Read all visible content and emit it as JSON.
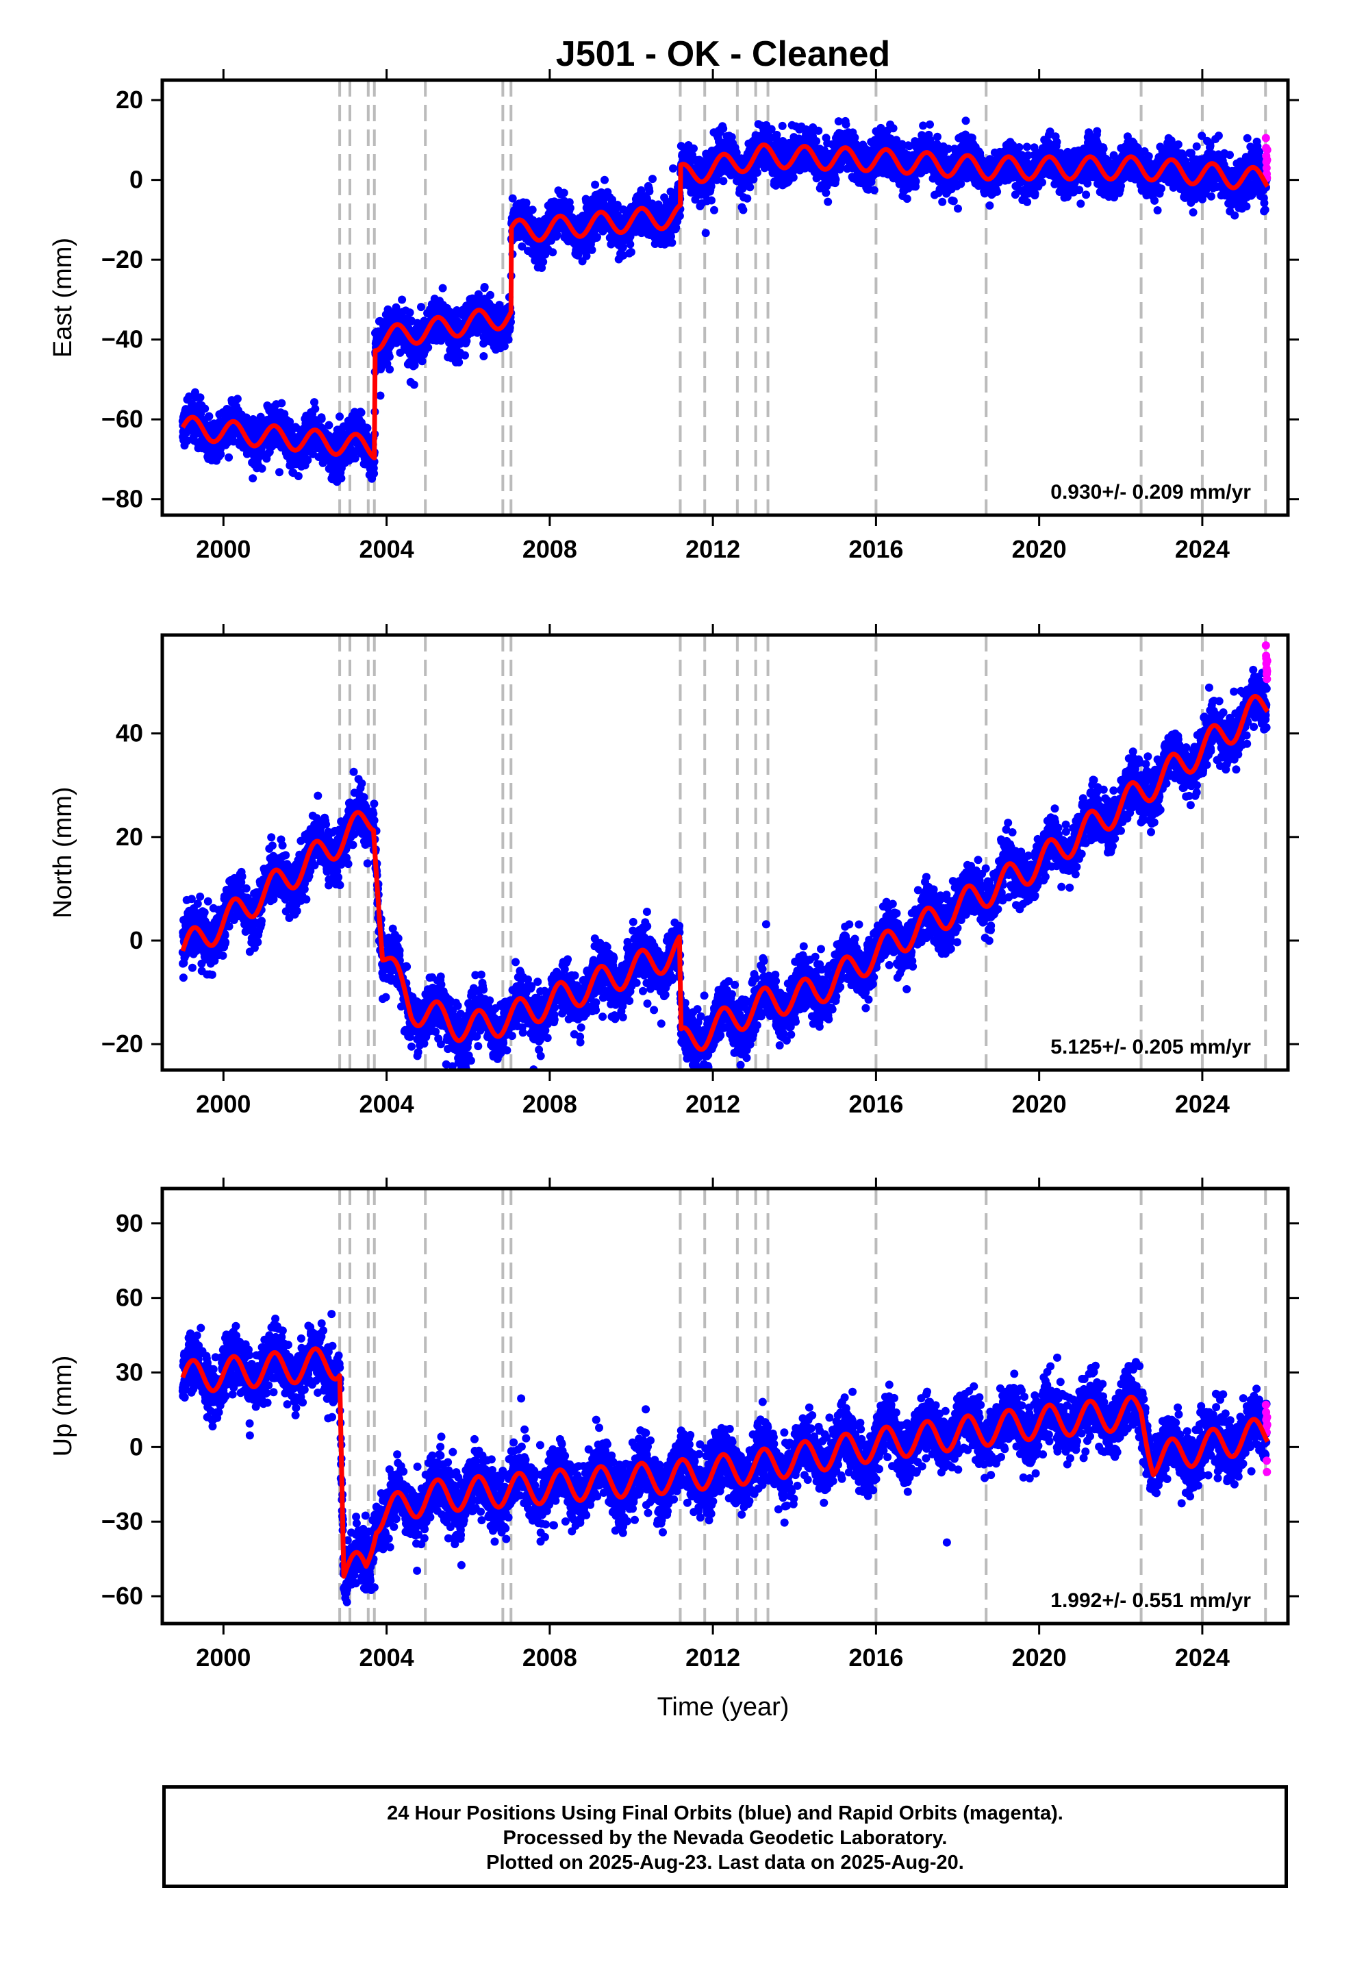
{
  "chart_data": {
    "type": "scatter",
    "title": "J501  - OK - Cleaned",
    "xlabel": "Time (year)",
    "xlim": [
      1998.5,
      2026.1
    ],
    "x_ticks": [
      2000,
      2004,
      2008,
      2012,
      2016,
      2020,
      2024
    ],
    "event_lines": [
      2002.85,
      2003.1,
      2003.55,
      2003.7,
      2004.95,
      2006.85,
      2007.05,
      2011.2,
      2011.8,
      2012.6,
      2013.05,
      2013.35,
      2016.0,
      2018.7,
      2022.5,
      2024.0,
      2025.55
    ],
    "colors": {
      "final": "#0000ff",
      "rapid": "#ff00ff",
      "model": "#ff0000",
      "event": "#bbbbbb"
    },
    "panels": [
      {
        "name": "east",
        "ylabel": "East (mm)",
        "ylim": [
          -84,
          25
        ],
        "y_ticks": [
          20,
          0,
          -20,
          -40,
          -60,
          -80
        ],
        "rate": "0.930+/- 0.209 mm/yr",
        "model": {
          "amplitude": 2.8,
          "anchors": [
            [
              1999.0,
              -62
            ],
            [
              2003.7,
              -67
            ],
            [
              2003.72,
              -40
            ],
            [
              2007.05,
              -34
            ],
            [
              2007.06,
              -13
            ],
            [
              2011.2,
              -9
            ],
            [
              2011.21,
              1
            ],
            [
              2013.2,
              6
            ],
            [
              2016.0,
              5
            ],
            [
              2018.7,
              3
            ],
            [
              2022.5,
              3
            ],
            [
              2025.6,
              0
            ]
          ]
        },
        "noise": 2.8,
        "rapid_values": [
          10.5,
          8.0,
          6.0,
          4.5,
          3.0,
          1.5,
          0.5,
          5.0,
          7.5
        ]
      },
      {
        "name": "north",
        "ylabel": "North (mm)",
        "ylim": [
          -25,
          59
        ],
        "y_ticks": [
          40,
          20,
          0,
          -20
        ],
        "rate": "5.125+/- 0.205 mm/yr",
        "model": {
          "amplitude": 3.0,
          "anchors": [
            [
              1999.0,
              -2
            ],
            [
              2003.68,
              24
            ],
            [
              2003.9,
              -2
            ],
            [
              2004.6,
              -13
            ],
            [
              2006.0,
              -17
            ],
            [
              2007.0,
              -15
            ],
            [
              2011.18,
              -2
            ],
            [
              2011.22,
              -20
            ],
            [
              2012.0,
              -17
            ],
            [
              2013.3,
              -12
            ],
            [
              2014.5,
              -10
            ],
            [
              2016.5,
              0
            ],
            [
              2020.0,
              15
            ],
            [
              2024.0,
              37
            ],
            [
              2025.6,
              46
            ]
          ]
        },
        "noise": 2.6,
        "rapid_values": [
          57.0,
          55.0,
          54.5,
          53.5,
          52.5,
          51.5,
          50.5,
          52.0,
          54.0
        ]
      },
      {
        "name": "up",
        "ylabel": "Up (mm)",
        "ylim": [
          -71,
          104
        ],
        "y_ticks": [
          90,
          60,
          30,
          0,
          -30,
          -60
        ],
        "rate": "1.992+/- 0.551 mm/yr",
        "model": {
          "amplitude": 6.5,
          "anchors": [
            [
              1999.0,
              28
            ],
            [
              2002.85,
              34
            ],
            [
              2002.95,
              -50
            ],
            [
              2003.5,
              -48
            ],
            [
              2003.75,
              -28
            ],
            [
              2005.0,
              -20
            ],
            [
              2011.0,
              -12
            ],
            [
              2013.0,
              -8
            ],
            [
              2016.0,
              1
            ],
            [
              2020.0,
              10
            ],
            [
              2022.5,
              14
            ],
            [
              2022.8,
              -5
            ],
            [
              2025.6,
              6
            ]
          ]
        },
        "noise": 6.0,
        "rapid_values": [
          17.0,
          14.0,
          11.0,
          8.0,
          6.0,
          -5.5,
          -10.0,
          12.0,
          9.0
        ]
      }
    ]
  },
  "footer": {
    "line1": "24 Hour Positions Using Final Orbits (blue) and Rapid Orbits (magenta).",
    "line2": "Processed by the Nevada Geodetic Laboratory.",
    "line3": "Plotted on 2025-Aug-23. Last data on 2025-Aug-20."
  }
}
